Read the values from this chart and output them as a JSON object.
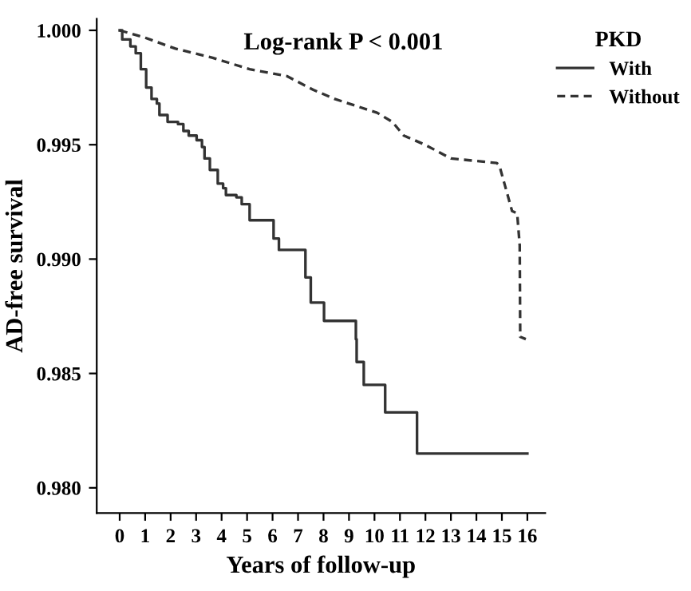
{
  "chart_data": {
    "type": "step",
    "xlabel": "Years of follow-up",
    "ylabel": "AD-free survival",
    "legend_title": "PKD",
    "legend": "top right",
    "annotations": [
      "Log-rank P < 0.001"
    ],
    "xlim": [
      -0.9,
      16.7
    ],
    "ylim": [
      0.9789,
      1.0005
    ],
    "xticks": [
      0,
      1,
      2,
      3,
      4,
      5,
      6,
      7,
      8,
      9,
      10,
      11,
      12,
      13,
      14,
      15,
      16
    ],
    "yticks": [
      {
        "value": 0.98,
        "label": "0.980"
      },
      {
        "value": 0.985,
        "label": "0.985"
      },
      {
        "value": 0.99,
        "label": "0.990"
      },
      {
        "value": 0.995,
        "label": "0.995"
      },
      {
        "value": 1.0,
        "label": "1.000"
      }
    ],
    "grid": false,
    "series": [
      {
        "name": "With",
        "color": "#333333",
        "line_style": "solid",
        "x": [
          0,
          0.1,
          0.42,
          0.63,
          0.83,
          1.04,
          1.25,
          1.46,
          1.56,
          1.88,
          2.29,
          2.5,
          2.71,
          3.02,
          3.23,
          3.33,
          3.54,
          3.85,
          4.06,
          4.17,
          4.58,
          4.79,
          5.1,
          6.04,
          6.25,
          7.29,
          7.5,
          8.02,
          9.27,
          9.3,
          9.58,
          10.42,
          11.67,
          16.0
        ],
        "values": [
          1.0,
          0.9996,
          0.9993,
          0.999,
          0.9983,
          0.9975,
          0.997,
          0.9968,
          0.9963,
          0.996,
          0.9959,
          0.9956,
          0.9954,
          0.9952,
          0.9949,
          0.9944,
          0.9939,
          0.9933,
          0.9931,
          0.9928,
          0.9927,
          0.9924,
          0.9917,
          0.9909,
          0.9904,
          0.9892,
          0.9881,
          0.9873,
          0.9865,
          0.9855,
          0.9845,
          0.9833,
          0.9815,
          0.9815
        ]
      },
      {
        "name": "Without",
        "type": "line",
        "color": "#333333",
        "line_style": "dashed",
        "x": [
          0,
          0.94,
          2.19,
          3.65,
          5.1,
          6.56,
          7.6,
          8.44,
          10.1,
          10.7,
          11.15,
          11.98,
          13.0,
          14.8,
          14.9,
          15.1,
          15.4,
          15.6,
          15.7,
          15.72,
          15.94
        ],
        "values": [
          1.0,
          0.9997,
          0.9992,
          0.9988,
          0.9983,
          0.998,
          0.9974,
          0.997,
          0.9964,
          0.996,
          0.9954,
          0.995,
          0.9944,
          0.9942,
          0.9941,
          0.9933,
          0.9921,
          0.992,
          0.9906,
          0.9866,
          0.9865
        ]
      }
    ]
  }
}
